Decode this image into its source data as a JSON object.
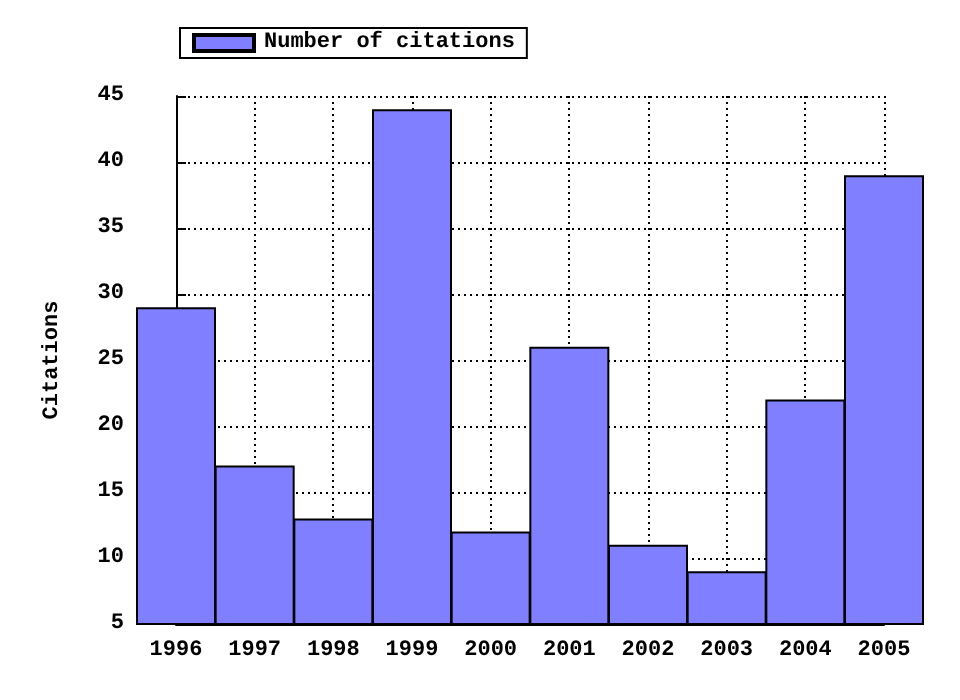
{
  "chart_data": {
    "type": "bar",
    "ylabel": "Citations",
    "x": [
      1996,
      1997,
      1998,
      1999,
      2000,
      2001,
      2002,
      2003,
      2004,
      2005
    ],
    "series": [
      {
        "name": "Number of citations",
        "color": "#7f7fff",
        "values": [
          29,
          17,
          13,
          44,
          12,
          26,
          11,
          9,
          22,
          39
        ]
      }
    ],
    "xlim": [
      1996,
      2005
    ],
    "xticks": [
      1996,
      1997,
      1998,
      1999,
      2000,
      2001,
      2002,
      2003,
      2004,
      2005
    ],
    "ylim": [
      5,
      45
    ],
    "yticks": [
      5,
      10,
      15,
      20,
      25,
      30,
      35,
      40,
      45
    ],
    "grid": true,
    "legend": "top left"
  }
}
